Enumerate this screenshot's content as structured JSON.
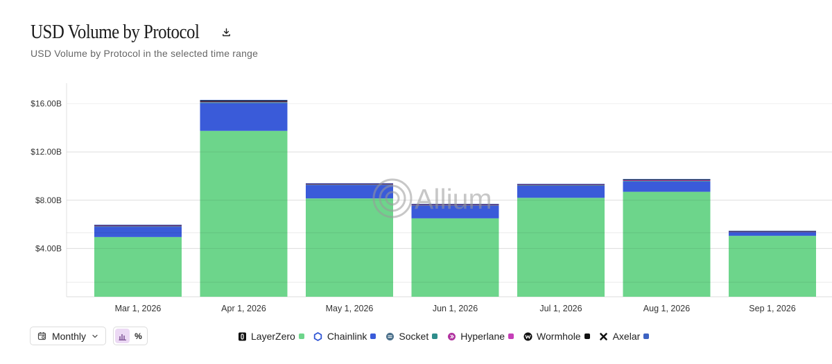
{
  "header": {
    "title": "USD Volume by Protocol",
    "subtitle": "USD Volume by Protocol in the selected time range",
    "download_icon": "download-icon"
  },
  "watermark": {
    "text": "Allium"
  },
  "controls": {
    "interval_label": "Monthly",
    "calendar_icon": "calendar-icon",
    "chevron_icon": "chevron-down-icon",
    "bar_mode_icon": "bar-chart-icon",
    "percent_mode_label": "%"
  },
  "legend": [
    {
      "name": "LayerZero",
      "icon": "layerzero-icon",
      "color": "#6dd58b"
    },
    {
      "name": "Chainlink",
      "icon": "chainlink-icon",
      "color": "#3a5bd9"
    },
    {
      "name": "Socket",
      "icon": "socket-icon",
      "color": "#2e8d8b"
    },
    {
      "name": "Hyperlane",
      "icon": "hyperlane-icon",
      "color": "#c63fb8"
    },
    {
      "name": "Wormhole",
      "icon": "wormhole-icon",
      "color": "#111111"
    },
    {
      "name": "Axelar",
      "icon": "axelar-icon",
      "color": "#3d63c2"
    }
  ],
  "chart_data": {
    "type": "bar",
    "stacked": true,
    "categories": [
      "Mar 1, 2026",
      "Apr 1, 2026",
      "May 1, 2026",
      "Jun 1, 2026",
      "Jul 1, 2026",
      "Aug 1, 2026",
      "Sep 1, 2026"
    ],
    "y_ticks": [
      4,
      8,
      12,
      16
    ],
    "y_tick_labels": [
      "$4.00B",
      "$8.00B",
      "$12.00B",
      "$16.00B"
    ],
    "ylim": [
      0,
      17.7
    ],
    "grid": true,
    "legend_position": "bottom",
    "series": [
      {
        "name": "LayerZero",
        "color": "#6dd58b",
        "values": [
          4.95,
          13.75,
          8.15,
          6.5,
          8.2,
          8.7,
          5.05
        ]
      },
      {
        "name": "Chainlink",
        "color": "#3a5bd9",
        "values": [
          0.85,
          2.3,
          1.1,
          1.05,
          1.0,
          0.85,
          0.3
        ]
      },
      {
        "name": "Socket",
        "color": "#2e8d8b",
        "values": [
          0.06,
          0.08,
          0.05,
          0.04,
          0.05,
          0.05,
          0.04
        ]
      },
      {
        "name": "Hyperlane",
        "color": "#c63fb8",
        "values": [
          0.03,
          0.04,
          0.04,
          0.03,
          0.04,
          0.06,
          0.02
        ]
      },
      {
        "name": "Wormhole",
        "color": "#111111",
        "values": [
          0.05,
          0.1,
          0.04,
          0.05,
          0.04,
          0.06,
          0.03
        ]
      },
      {
        "name": "Axelar",
        "color": "#3d63c2",
        "values": [
          0.03,
          0.05,
          0.03,
          0.03,
          0.03,
          0.04,
          0.03
        ]
      }
    ]
  }
}
